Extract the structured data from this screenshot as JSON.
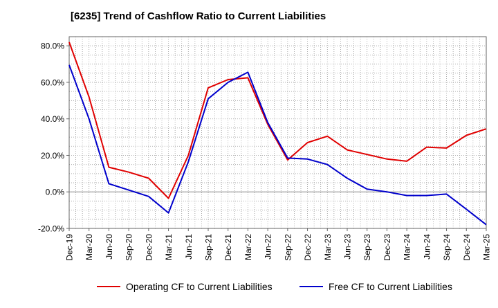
{
  "chart_data": {
    "type": "line",
    "title": "[6235]  Trend of Cashflow Ratio to Current Liabilities",
    "x": [
      "Dec-19",
      "Mar-20",
      "Jun-20",
      "Sep-20",
      "Dec-20",
      "Mar-21",
      "Jun-21",
      "Sep-21",
      "Dec-21",
      "Mar-22",
      "Jun-22",
      "Sep-22",
      "Dec-22",
      "Mar-23",
      "Jun-23",
      "Sep-23",
      "Dec-23",
      "Mar-24",
      "Jun-24",
      "Sep-24",
      "Dec-24",
      "Mar-25"
    ],
    "series": [
      {
        "name": "Operating CF to Current Liabilities",
        "color": "#e00000",
        "values": [
          82.0,
          52.0,
          13.5,
          10.8,
          7.5,
          -3.5,
          20.0,
          57.0,
          61.5,
          62.5,
          37.0,
          17.5,
          27.0,
          30.5,
          23.0,
          20.5,
          18.0,
          16.8,
          24.5,
          24.0,
          31.0,
          34.5
        ]
      },
      {
        "name": "Free CF to Current Liabilities",
        "color": "#0000cc",
        "values": [
          69.5,
          40.0,
          4.5,
          1.0,
          -2.5,
          -11.5,
          16.5,
          51.0,
          60.0,
          65.5,
          38.0,
          18.5,
          18.0,
          15.0,
          7.5,
          1.5,
          0.0,
          -2.0,
          -2.0,
          -1.2,
          -9.5,
          -18.0
        ]
      }
    ],
    "y_ticks": [
      "80.0%",
      "60.0%",
      "40.0%",
      "20.0%",
      "0.0%",
      "-20.0%"
    ],
    "ylim": [
      -20,
      85
    ],
    "grid": true,
    "legend_position": "bottom"
  }
}
